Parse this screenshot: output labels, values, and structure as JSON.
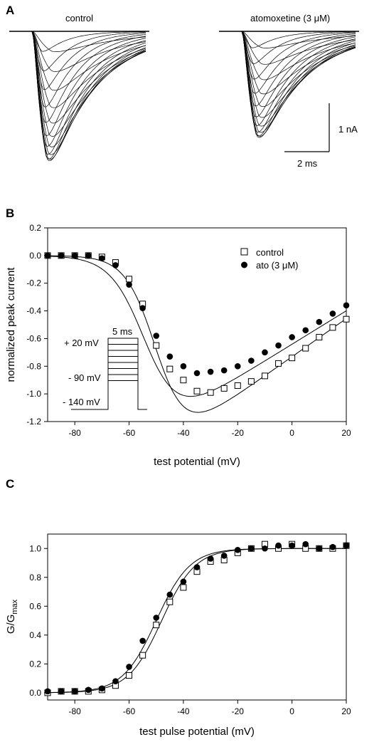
{
  "panels": {
    "A": {
      "letter": "A",
      "left_label": "control",
      "right_label": "atomoxetine (3 μM)",
      "scale_current": "1 nA",
      "scale_time": "2 ms"
    },
    "B": {
      "letter": "B",
      "protocol": {
        "v_top": "+ 20 mV",
        "v_mid": "- 90 mV",
        "v_hold": "- 140 mV",
        "duration": "5 ms"
      }
    },
    "C": {
      "letter": "C"
    }
  },
  "chart_data": [
    {
      "panel": "B",
      "type": "scatter",
      "xlabel": "test potential (mV)",
      "ylabel": "normalized peak current",
      "xlim": [
        -90,
        20
      ],
      "ylim": [
        -1.2,
        0.2
      ],
      "xticks": [
        -80,
        -60,
        -40,
        -20,
        0,
        20
      ],
      "yticks": [
        0.2,
        0.0,
        -0.2,
        -0.4,
        -0.6,
        -0.8,
        -1.0,
        -1.2
      ],
      "legend_position": "top-right",
      "series": [
        {
          "name": "control",
          "marker": "open-square",
          "x": [
            -90,
            -85,
            -80,
            -75,
            -70,
            -65,
            -60,
            -55,
            -50,
            -45,
            -40,
            -35,
            -30,
            -25,
            -20,
            -15,
            -10,
            -5,
            0,
            5,
            10,
            15,
            20
          ],
          "y": [
            0.0,
            0.0,
            0.0,
            0.0,
            -0.01,
            -0.05,
            -0.17,
            -0.35,
            -0.65,
            -0.82,
            -0.9,
            -0.98,
            -0.99,
            -0.96,
            -0.94,
            -0.91,
            -0.87,
            -0.78,
            -0.74,
            -0.67,
            -0.59,
            -0.52,
            -0.46
          ]
        },
        {
          "name": "ato (3 μM)",
          "marker": "filled-circle",
          "x": [
            -90,
            -85,
            -80,
            -75,
            -70,
            -65,
            -60,
            -55,
            -50,
            -45,
            -40,
            -35,
            -30,
            -25,
            -20,
            -15,
            -10,
            -5,
            0,
            5,
            10,
            15,
            20
          ],
          "y": [
            0.0,
            0.0,
            0.0,
            0.0,
            -0.02,
            -0.07,
            -0.21,
            -0.38,
            -0.58,
            -0.73,
            -0.8,
            -0.85,
            -0.84,
            -0.83,
            -0.8,
            -0.76,
            -0.7,
            -0.65,
            -0.59,
            -0.54,
            -0.48,
            -0.42,
            -0.36
          ]
        }
      ]
    },
    {
      "panel": "C",
      "type": "scatter",
      "xlabel": "test pulse potential (mV)",
      "ylabel": "G/G",
      "ylabel_sub": "max",
      "xlim": [
        -90,
        20
      ],
      "ylim": [
        -0.05,
        1.1
      ],
      "xticks": [
        -80,
        -60,
        -40,
        -20,
        0,
        20
      ],
      "yticks": [
        0.0,
        0.2,
        0.4,
        0.6,
        0.8,
        1.0
      ],
      "series": [
        {
          "name": "control",
          "marker": "open-square",
          "x": [
            -90,
            -85,
            -80,
            -75,
            -70,
            -65,
            -60,
            -55,
            -50,
            -45,
            -40,
            -35,
            -30,
            -25,
            -20,
            -15,
            -10,
            -5,
            0,
            5,
            10,
            15,
            20
          ],
          "y": [
            0.0,
            0.01,
            0.01,
            0.01,
            0.02,
            0.05,
            0.12,
            0.26,
            0.47,
            0.63,
            0.73,
            0.84,
            0.91,
            0.92,
            0.97,
            1.0,
            1.03,
            1.0,
            1.03,
            1.0,
            1.0,
            1.0,
            1.02
          ]
        },
        {
          "name": "ato (3 μM)",
          "marker": "filled-circle",
          "x": [
            -90,
            -85,
            -80,
            -75,
            -70,
            -65,
            -60,
            -55,
            -50,
            -45,
            -40,
            -35,
            -30,
            -25,
            -20,
            -15,
            -10,
            -5,
            0,
            5,
            10,
            15,
            20
          ],
          "y": [
            0.01,
            0.01,
            0.01,
            0.02,
            0.03,
            0.08,
            0.18,
            0.36,
            0.52,
            0.68,
            0.77,
            0.87,
            0.93,
            0.95,
            0.99,
            1.0,
            1.0,
            1.02,
            1.02,
            1.03,
            1.0,
            1.01,
            1.02
          ]
        }
      ]
    }
  ]
}
